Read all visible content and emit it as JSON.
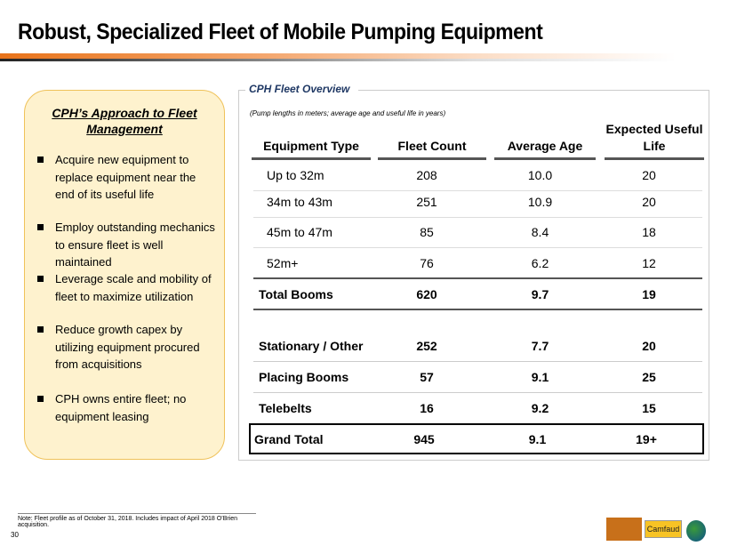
{
  "title": "Robust, Specialized Fleet of Mobile Pumping Equipment",
  "sidebar": {
    "heading": "CPH’s Approach to Fleet Management",
    "bullets": [
      "Acquire new equipment to replace equipment near the end of its useful life",
      "Employ outstanding mechanics to ensure fleet is well maintained",
      "Leverage scale and mobility of fleet to maximize utilization",
      "Reduce growth capex by utilizing equipment procured from acquisitions",
      "CPH owns entire fleet; no equipment leasing"
    ]
  },
  "fleet": {
    "title": "CPH Fleet Overview",
    "subtitle": "(Pump lengths in meters; average age and useful life in years)",
    "headers": [
      "Equipment Type",
      "Fleet Count",
      "Average Age",
      "Expected Useful Life"
    ],
    "rows": [
      [
        "Up to 32m",
        "208",
        "10.0",
        "20"
      ],
      [
        "34m to 43m",
        "251",
        "10.9",
        "20"
      ],
      [
        "45m to 47m",
        "85",
        "8.4",
        "18"
      ],
      [
        "52m+",
        "76",
        "6.2",
        "12"
      ],
      [
        "Total Booms",
        "620",
        "9.7",
        "19"
      ],
      [
        "Stationary / Other",
        "252",
        "7.7",
        "20"
      ],
      [
        "Placing Booms",
        "57",
        "9.1",
        "25"
      ],
      [
        "Telebelts",
        "16",
        "9.2",
        "15"
      ],
      [
        "Grand Total",
        "945",
        "9.1",
        "19+"
      ]
    ]
  },
  "footer": {
    "note": "Note: Fleet profile as of October 31, 2018. Includes impact of April 2018 O’Brien acquisition.",
    "page": "30",
    "logos": [
      "Brundage-Bone",
      "Camfaud",
      "Eco-Pan"
    ]
  }
}
